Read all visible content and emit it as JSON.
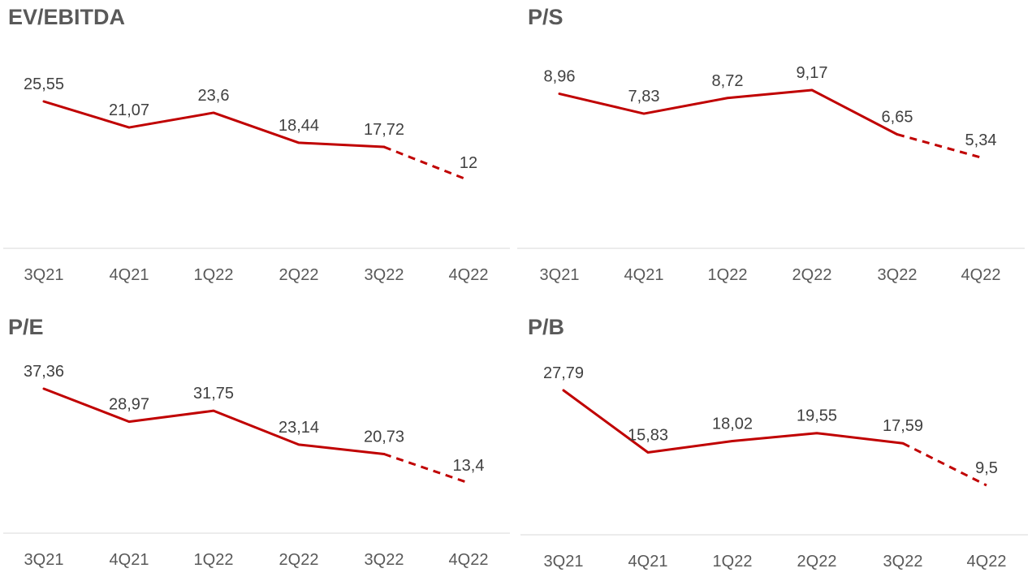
{
  "line_color": "#c00000",
  "chart_data": [
    {
      "type": "line",
      "title": "EV/EBITDA",
      "categories": [
        "3Q21",
        "4Q21",
        "1Q22",
        "2Q22",
        "3Q22",
        "4Q22"
      ],
      "values": [
        25.55,
        21.07,
        23.6,
        18.44,
        17.72,
        12
      ],
      "value_labels": [
        "25,55",
        "21,07",
        "23,6",
        "18,44",
        "17,72",
        "12"
      ],
      "dashed_last_segment": true,
      "grid": false
    },
    {
      "type": "line",
      "title": "P/S",
      "categories": [
        "3Q21",
        "4Q21",
        "1Q22",
        "2Q22",
        "3Q22",
        "4Q22"
      ],
      "values": [
        8.96,
        7.83,
        8.72,
        9.17,
        6.65,
        5.34
      ],
      "value_labels": [
        "8,96",
        "7,83",
        "8,72",
        "9,17",
        "6,65",
        "5,34"
      ],
      "dashed_last_segment": true,
      "grid": false
    },
    {
      "type": "line",
      "title": "P/E",
      "categories": [
        "3Q21",
        "4Q21",
        "1Q22",
        "2Q22",
        "3Q22",
        "4Q22"
      ],
      "values": [
        37.36,
        28.97,
        31.75,
        23.14,
        20.73,
        13.4
      ],
      "value_labels": [
        "37,36",
        "28,97",
        "31,75",
        "23,14",
        "20,73",
        "13,4"
      ],
      "dashed_last_segment": true,
      "grid": false
    },
    {
      "type": "line",
      "title": "P/B",
      "categories": [
        "3Q21",
        "4Q21",
        "1Q22",
        "2Q22",
        "3Q22",
        "4Q22"
      ],
      "values": [
        27.79,
        15.83,
        18.02,
        19.55,
        17.59,
        9.5
      ],
      "value_labels": [
        "27,79",
        "15,83",
        "18,02",
        "19,55",
        "17,59",
        "9,5"
      ],
      "dashed_last_segment": true,
      "grid": false
    }
  ]
}
